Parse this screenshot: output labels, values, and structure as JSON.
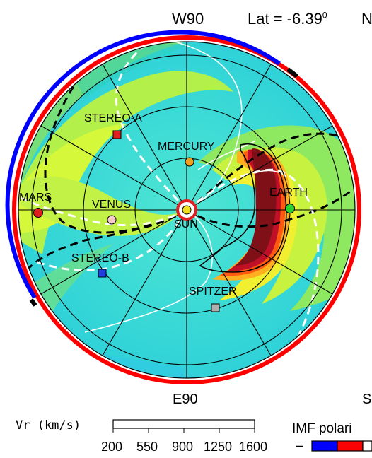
{
  "header": {
    "direction_top": "W90",
    "lat_label": "Lat = -6.39",
    "lat_sup": "0",
    "edge_right_top": "N"
  },
  "footer": {
    "direction_bottom": "E90",
    "edge_right_bottom": "S",
    "vr_label": "Vr (km/s)",
    "vr_ticks": [
      "200",
      "550",
      "900",
      "1250",
      "1600"
    ],
    "imf_label": "IMF polari",
    "imf_minus": "–"
  },
  "bodies": [
    {
      "name": "STEREO-A",
      "shape": "square",
      "color": "#e02020"
    },
    {
      "name": "MERCURY",
      "shape": "circle",
      "color": "#f0a020"
    },
    {
      "name": "MARS",
      "shape": "circle",
      "color": "#e02020"
    },
    {
      "name": "VENUS",
      "shape": "circle",
      "color": "#f6c8c8"
    },
    {
      "name": "EARTH",
      "shape": "circle",
      "color": "#30d030"
    },
    {
      "name": "STEREO-B",
      "shape": "square",
      "color": "#2040e0"
    },
    {
      "name": "SPITZER",
      "shape": "square",
      "color": "#b0b0b0"
    },
    {
      "name": "SUN",
      "shape": "circle",
      "color": "#f0e020"
    }
  ],
  "colors": {
    "polarity_positive": "#ff0000",
    "polarity_negative": "#0000ff",
    "background_wind": "#3ee0d0"
  }
}
